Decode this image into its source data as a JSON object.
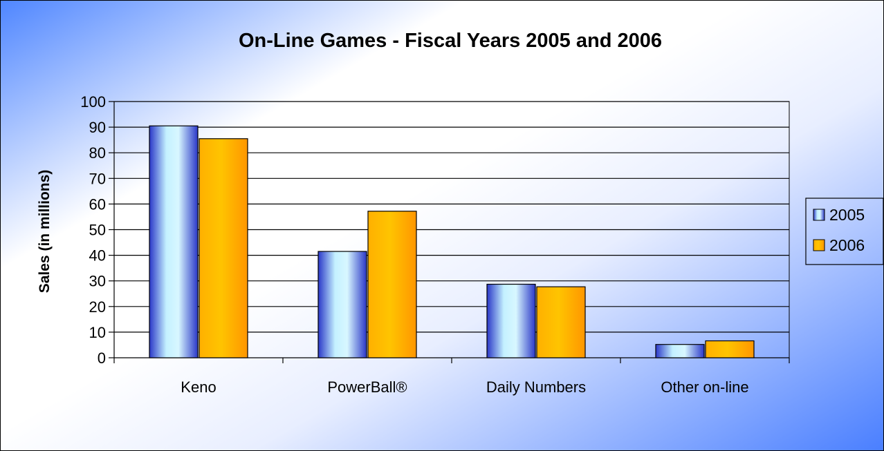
{
  "chart_data": {
    "type": "bar",
    "title": "On-Line Games - Fiscal Years 2005 and 2006",
    "xlabel": "",
    "ylabel": "Sales (in millions)",
    "categories": [
      "Keno",
      "PowerBall®",
      "Daily Numbers",
      "Other on-line"
    ],
    "series": [
      {
        "name": "2005",
        "values": [
          90.5,
          41.5,
          28.7,
          5.2
        ]
      },
      {
        "name": "2006",
        "values": [
          85.5,
          57.2,
          27.7,
          6.6
        ]
      }
    ],
    "ylim": [
      0,
      100
    ],
    "yticks": [
      "0",
      "10",
      "20",
      "30",
      "40",
      "50",
      "60",
      "70",
      "80",
      "90",
      "100"
    ],
    "grid": true,
    "legend": "right",
    "colors": {
      "series_2005": "#c4f1ff",
      "series_2005_edge": "#2a37c8",
      "series_2006": "#ffc000",
      "series_2006_edge": "#ff9900",
      "gridline": "#000000"
    }
  }
}
